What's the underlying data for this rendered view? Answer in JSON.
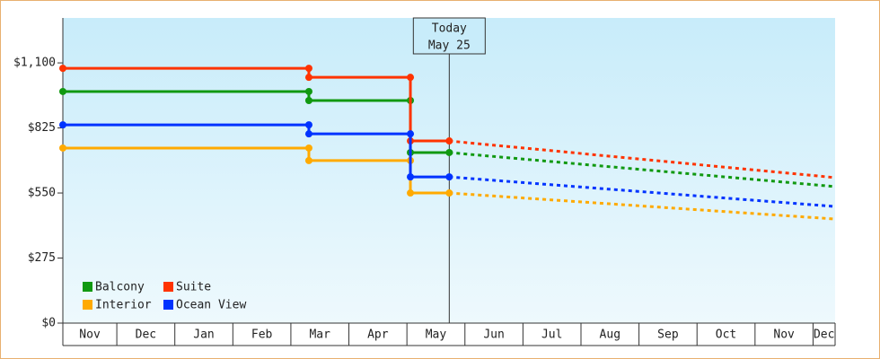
{
  "chart_data": {
    "type": "line",
    "categories": [
      "Nov",
      "Dec",
      "Jan",
      "Feb",
      "Mar",
      "Apr",
      "May",
      "Jun",
      "Jul",
      "Aug",
      "Sep",
      "Oct",
      "Nov",
      "Dec"
    ],
    "xlim": [
      0.07,
      13.38
    ],
    "ylim": [
      0,
      1290
    ],
    "yticks": [
      {
        "value": 0,
        "label": "$0"
      },
      {
        "value": 275,
        "label": "$275"
      },
      {
        "value": 550,
        "label": "$550"
      },
      {
        "value": 825,
        "label": "$825"
      },
      {
        "value": 1100,
        "label": "$1,100"
      }
    ],
    "x": [
      0.07,
      4.31,
      4.31,
      6.06,
      6.06,
      6.73
    ],
    "projection_x": [
      6.73,
      13.38
    ],
    "today": {
      "x": 6.73,
      "label": "Today",
      "date": "May 25"
    },
    "legend": "lower left",
    "series": [
      {
        "name": "Balcony",
        "color": "#119911",
        "values": [
          979,
          979,
          941,
          941,
          721,
          721
        ],
        "projected_values": [
          721,
          577
        ]
      },
      {
        "name": "Suite",
        "color": "#ff3300",
        "values": [
          1077,
          1077,
          1039,
          1039,
          770,
          770
        ],
        "projected_values": [
          770,
          615
        ]
      },
      {
        "name": "Interior",
        "color": "#ffaa00",
        "values": [
          740,
          740,
          687,
          687,
          550,
          550
        ],
        "projected_values": [
          550,
          440
        ]
      },
      {
        "name": "Ocean View",
        "color": "#0033ff",
        "values": [
          838,
          838,
          800,
          800,
          618,
          618
        ],
        "projected_values": [
          618,
          493
        ]
      }
    ]
  }
}
